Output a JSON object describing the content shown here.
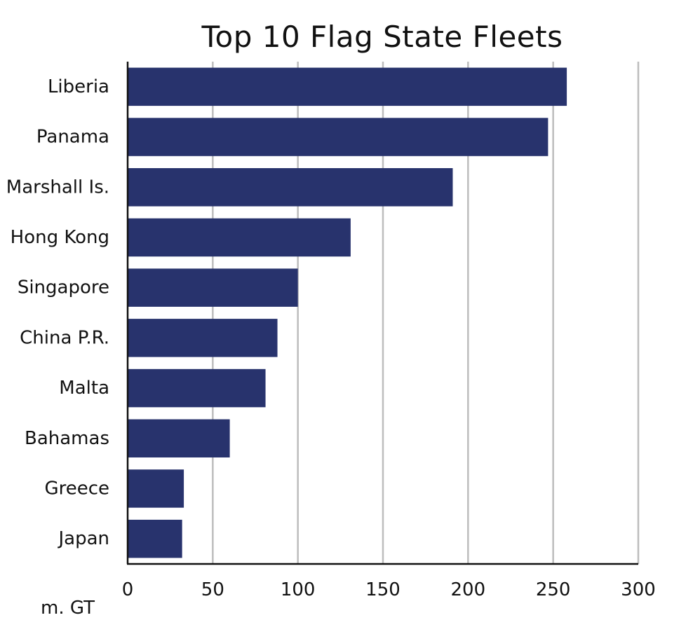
{
  "chart_data": {
    "type": "bar",
    "orientation": "horizontal",
    "title": "Top 10 Flag State Fleets",
    "xlabel": "m. GT",
    "ylabel": "",
    "categories": [
      "Liberia",
      "Panama",
      "Marshall Is.",
      "Hong Kong",
      "Singapore",
      "China P.R.",
      "Malta",
      "Bahamas",
      "Greece",
      "Japan"
    ],
    "values": [
      258,
      247,
      191,
      131,
      100,
      88,
      81,
      60,
      33,
      32
    ],
    "xlim": [
      0,
      300
    ],
    "xticks": [
      0,
      50,
      100,
      150,
      200,
      250,
      300
    ],
    "grid": true,
    "bar_color": "#28336d",
    "grid_color": "#bdbdbd"
  }
}
